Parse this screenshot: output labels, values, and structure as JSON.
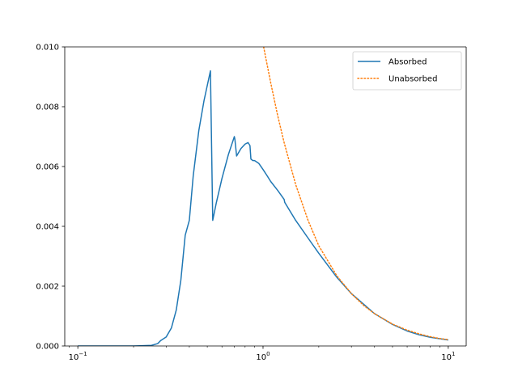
{
  "chart_data": {
    "type": "line",
    "title": "",
    "xlabel": "",
    "ylabel": "",
    "xscale": "log",
    "xlim": [
      0.085,
      12.5
    ],
    "ylim": [
      0,
      0.01
    ],
    "grid": false,
    "legend_position": "top-right",
    "x_ticks": [
      {
        "value": 0.1,
        "base": "10",
        "exp": "−1"
      },
      {
        "value": 1,
        "base": "10",
        "exp": "0"
      },
      {
        "value": 10,
        "base": "10",
        "exp": "1"
      }
    ],
    "y_ticks": [
      {
        "value": 0,
        "label": "0.000"
      },
      {
        "value": 0.002,
        "label": "0.002"
      },
      {
        "value": 0.004,
        "label": "0.004"
      },
      {
        "value": 0.006,
        "label": "0.006"
      },
      {
        "value": 0.008,
        "label": "0.008"
      },
      {
        "value": 0.01,
        "label": "0.010"
      }
    ],
    "series": [
      {
        "name": "Absorbed",
        "color": "#1f77b4",
        "style": "solid",
        "x": [
          0.1,
          0.15,
          0.2,
          0.25,
          0.27,
          0.28,
          0.3,
          0.32,
          0.34,
          0.36,
          0.38,
          0.4,
          0.42,
          0.45,
          0.48,
          0.52,
          0.535,
          0.56,
          0.6,
          0.65,
          0.7,
          0.705,
          0.72,
          0.76,
          0.8,
          0.83,
          0.85,
          0.86,
          0.88,
          0.9,
          0.95,
          1.0,
          1.05,
          1.1,
          1.2,
          1.3,
          1.31,
          1.5,
          1.8,
          2.0,
          2.5,
          3.0,
          4.0,
          5.0,
          6.0,
          7.0,
          8.0,
          10.0
        ],
        "y": [
          0.0,
          0.0,
          0.0,
          2e-05,
          8e-05,
          0.00018,
          0.0003,
          0.0006,
          0.0012,
          0.0022,
          0.0037,
          0.0042,
          0.0057,
          0.0072,
          0.0082,
          0.0092,
          0.0042,
          0.0048,
          0.0056,
          0.0064,
          0.007,
          0.0069,
          0.00635,
          0.0066,
          0.00675,
          0.0068,
          0.0067,
          0.00625,
          0.0062,
          0.0062,
          0.0061,
          0.0059,
          0.0057,
          0.0055,
          0.0052,
          0.0049,
          0.0048,
          0.0042,
          0.0035,
          0.0031,
          0.0023,
          0.00175,
          0.00108,
          0.00072,
          0.0005,
          0.00037,
          0.00029,
          0.0002
        ]
      },
      {
        "name": "Unabsorbed",
        "color": "#ff7f0e",
        "style": "dotted",
        "x": [
          1.0,
          1.1,
          1.2,
          1.3,
          1.5,
          1.75,
          2.0,
          2.5,
          3.0,
          3.5,
          4.0,
          5.0,
          6.0,
          7.0,
          8.0,
          9.0,
          10.0
        ],
        "y": [
          0.0101,
          0.0088,
          0.0077,
          0.0068,
          0.0054,
          0.0042,
          0.00335,
          0.00235,
          0.00175,
          0.00135,
          0.00108,
          0.00073,
          0.00053,
          0.0004,
          0.00031,
          0.00025,
          0.00021
        ]
      }
    ]
  }
}
